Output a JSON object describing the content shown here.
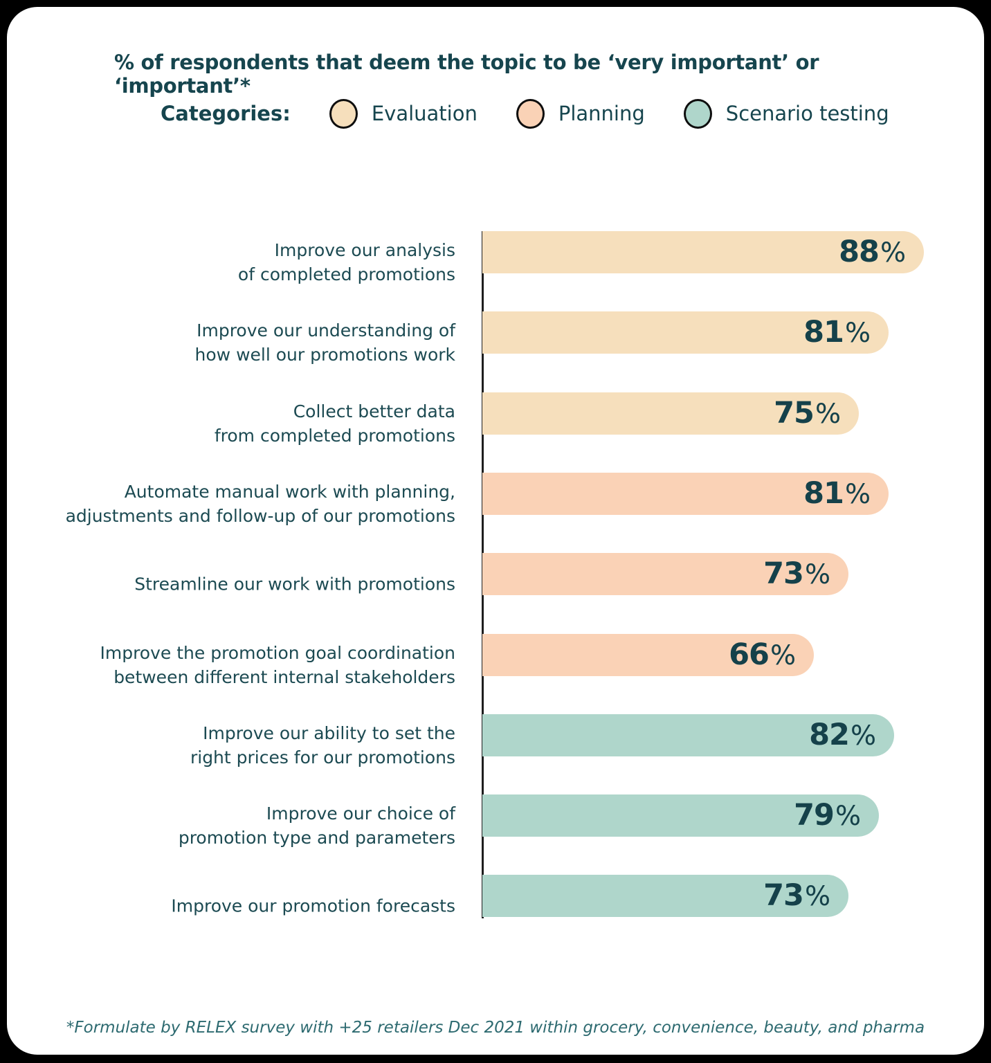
{
  "title": "% of respondents that deem the topic to be ‘very important’ or ‘important’*",
  "legend": {
    "label": "Categories:",
    "items": [
      {
        "name": "Evaluation",
        "color": "#F6DFBC"
      },
      {
        "name": "Planning",
        "color": "#FAD2B6"
      },
      {
        "name": "Scenario testing",
        "color": "#AFD6CB"
      }
    ]
  },
  "chart_data": {
    "type": "bar",
    "orientation": "horizontal",
    "title": "% of respondents that deem the topic to be ‘very important’ or ‘important’*",
    "value_unit": "%",
    "xlim": [
      0,
      100
    ],
    "grid": false,
    "legend_position": "top",
    "series": [
      "Evaluation",
      "Planning",
      "Scenario testing"
    ],
    "bars": [
      {
        "label": [
          "Improve our analysis",
          "of completed promotions"
        ],
        "value": 88,
        "category": "Evaluation"
      },
      {
        "label": [
          "Improve our understanding of",
          "how well our promotions work"
        ],
        "value": 81,
        "category": "Evaluation"
      },
      {
        "label": [
          "Collect better data",
          "from completed promotions"
        ],
        "value": 75,
        "category": "Evaluation"
      },
      {
        "label": [
          "Automate manual work with planning,",
          "adjustments and follow-up of our promotions"
        ],
        "value": 81,
        "category": "Planning"
      },
      {
        "label": [
          "Streamline our work with promotions"
        ],
        "value": 73,
        "category": "Planning"
      },
      {
        "label": [
          "Improve the promotion goal coordination",
          "between different internal stakeholders"
        ],
        "value": 66,
        "category": "Planning"
      },
      {
        "label": [
          "Improve our ability to set the",
          "right prices for our promotions"
        ],
        "value": 82,
        "category": "Scenario testing"
      },
      {
        "label": [
          "Improve our choice of",
          "promotion type and parameters"
        ],
        "value": 79,
        "category": "Scenario testing"
      },
      {
        "label": [
          "Improve our promotion forecasts"
        ],
        "value": 73,
        "category": "Scenario testing"
      }
    ]
  },
  "footnote": "*Formulate by RELEX survey with +25 retailers Dec 2021 within grocery, convenience, beauty, and pharma",
  "colors": {
    "background": "#000000",
    "card": "#FFFFFF",
    "text_dark": "#16454E",
    "axis": "#1E1E1E",
    "evaluation_bar": "#F6DFBC",
    "planning_bar": "#FAD2B6",
    "scenario_testing_bar": "#AFD6CB",
    "footnote_text": "#2D6A70"
  }
}
